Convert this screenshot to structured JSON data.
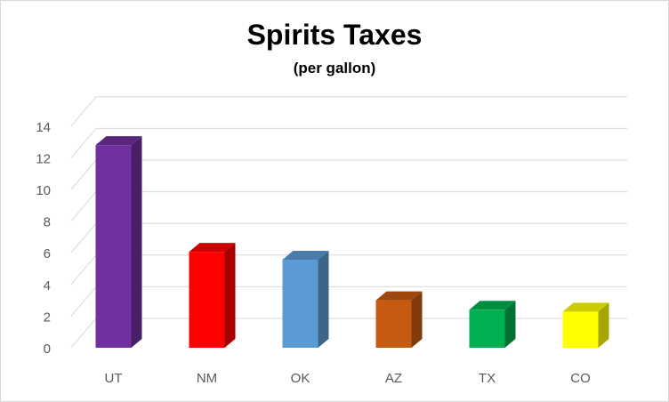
{
  "chart_data": {
    "type": "bar",
    "title": "Spirits Taxes",
    "subtitle": "(per gallon)",
    "categories": [
      "UT",
      "NM",
      "OK",
      "AZ",
      "TX",
      "CO"
    ],
    "values": [
      12.8,
      6.06,
      5.56,
      3.0,
      2.4,
      2.28
    ],
    "colors": [
      "#7030A0",
      "#FF0000",
      "#5B9BD5",
      "#C55A11",
      "#00B050",
      "#FFFF00"
    ],
    "ylim": [
      0,
      14
    ],
    "yticks": [
      0,
      2,
      4,
      6,
      8,
      10,
      12,
      14
    ],
    "grid": true,
    "legend": false,
    "style": "3d-column"
  }
}
